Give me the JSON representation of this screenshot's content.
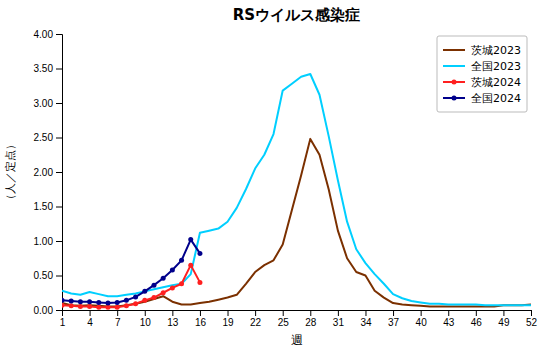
{
  "chart_data": {
    "type": "line",
    "title": "RSウイルス感染症",
    "x_label": "週",
    "y_label": "（人／定点）",
    "x": [
      1,
      2,
      3,
      4,
      5,
      6,
      7,
      8,
      9,
      10,
      11,
      12,
      13,
      14,
      15,
      16,
      17,
      18,
      19,
      20,
      21,
      22,
      23,
      24,
      25,
      26,
      27,
      28,
      29,
      30,
      31,
      32,
      33,
      34,
      35,
      36,
      37,
      38,
      39,
      40,
      41,
      42,
      43,
      44,
      45,
      46,
      47,
      48,
      49,
      50,
      51,
      52
    ],
    "xlim": [
      1,
      52
    ],
    "xticks": [
      1,
      4,
      7,
      10,
      13,
      16,
      19,
      22,
      25,
      28,
      31,
      34,
      37,
      40,
      43,
      46,
      49,
      52
    ],
    "ylim": [
      0,
      4.0
    ],
    "yticks": [
      {
        "value": 0.0,
        "label": "0.00"
      },
      {
        "value": 0.5,
        "label": "0.50"
      },
      {
        "value": 1.0,
        "label": "1.00"
      },
      {
        "value": 1.5,
        "label": "1.50"
      },
      {
        "value": 2.0,
        "label": "2.00"
      },
      {
        "value": 2.5,
        "label": "2.50"
      },
      {
        "value": 3.0,
        "label": "3.00"
      },
      {
        "value": 3.5,
        "label": "3.50"
      },
      {
        "value": 4.0,
        "label": "4.00"
      }
    ],
    "grid": false,
    "legend": "upper right",
    "series": [
      {
        "name": "茨城2023",
        "color": "#7B3000",
        "values": [
          0.1,
          0.07,
          0.06,
          0.07,
          0.06,
          0.05,
          0.05,
          0.07,
          0.09,
          0.12,
          0.16,
          0.2,
          0.12,
          0.08,
          0.08,
          0.1,
          0.12,
          0.15,
          0.18,
          0.22,
          0.38,
          0.55,
          0.65,
          0.72,
          0.95,
          1.45,
          1.95,
          2.48,
          2.25,
          1.75,
          1.15,
          0.75,
          0.55,
          0.5,
          0.28,
          0.18,
          0.1,
          0.08,
          0.07,
          0.06,
          0.05,
          0.05,
          0.05,
          0.05,
          0.05,
          0.05,
          0.05,
          0.05,
          0.07,
          0.07,
          0.07,
          0.08
        ]
      },
      {
        "name": "全国2023",
        "color": "#00CFFF",
        "values": [
          0.28,
          0.24,
          0.22,
          0.26,
          0.23,
          0.2,
          0.2,
          0.22,
          0.24,
          0.27,
          0.3,
          0.33,
          0.36,
          0.38,
          0.52,
          1.12,
          1.15,
          1.18,
          1.28,
          1.48,
          1.75,
          2.05,
          2.25,
          2.55,
          3.18,
          3.28,
          3.38,
          3.42,
          3.12,
          2.52,
          1.88,
          1.28,
          0.88,
          0.68,
          0.52,
          0.38,
          0.23,
          0.17,
          0.13,
          0.11,
          0.09,
          0.09,
          0.08,
          0.08,
          0.08,
          0.08,
          0.07,
          0.07,
          0.07,
          0.07,
          0.07,
          0.07
        ]
      },
      {
        "name": "茨城2024",
        "color": "#FF2020",
        "marker": "circle",
        "values": [
          0.07,
          0.06,
          0.05,
          0.05,
          0.04,
          0.04,
          0.04,
          0.06,
          0.09,
          0.14,
          0.18,
          0.25,
          0.32,
          0.38,
          0.65,
          0.4,
          null,
          null,
          null,
          null,
          null,
          null,
          null,
          null,
          null,
          null,
          null,
          null,
          null,
          null,
          null,
          null,
          null,
          null,
          null,
          null,
          null,
          null,
          null,
          null,
          null,
          null,
          null,
          null,
          null,
          null,
          null,
          null,
          null,
          null,
          null,
          null
        ]
      },
      {
        "name": "全国2024",
        "color": "#00008B",
        "marker": "circle",
        "values": [
          0.14,
          0.13,
          0.12,
          0.12,
          0.11,
          0.1,
          0.11,
          0.14,
          0.19,
          0.27,
          0.36,
          0.46,
          0.58,
          0.72,
          1.02,
          0.82,
          null,
          null,
          null,
          null,
          null,
          null,
          null,
          null,
          null,
          null,
          null,
          null,
          null,
          null,
          null,
          null,
          null,
          null,
          null,
          null,
          null,
          null,
          null,
          null,
          null,
          null,
          null,
          null,
          null,
          null,
          null,
          null,
          null,
          null,
          null,
          null
        ]
      }
    ]
  }
}
